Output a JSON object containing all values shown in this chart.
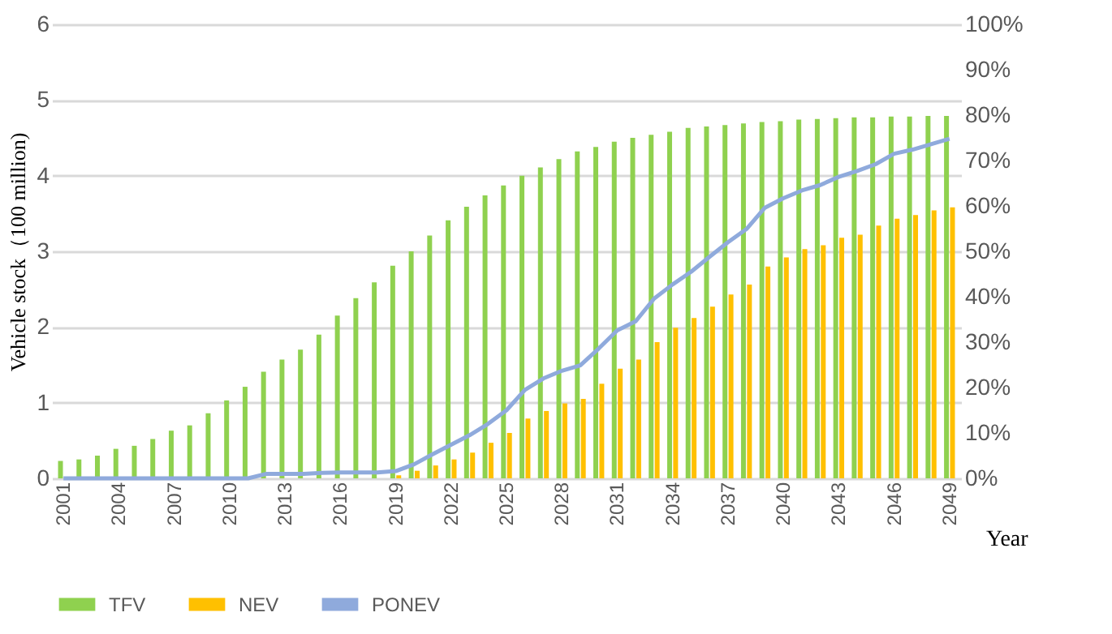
{
  "chart_data": {
    "type": "bar",
    "xlabel": "Year",
    "ylabel": "Vehicle stock（100 million)",
    "categories": [
      "2001",
      null,
      null,
      "2004",
      null,
      null,
      "2007",
      null,
      null,
      "2010",
      null,
      null,
      "2013",
      null,
      null,
      "2016",
      null,
      null,
      "2019",
      null,
      null,
      "2022",
      null,
      null,
      "2025",
      null,
      null,
      "2028",
      null,
      null,
      "2031",
      null,
      null,
      "2034",
      null,
      null,
      "2037",
      null,
      null,
      "2040",
      null,
      null,
      "2043",
      null,
      null,
      "2046",
      null,
      null,
      "2049"
    ],
    "series": [
      {
        "name": "TFV",
        "color": "#8fd14f",
        "values": [
          0.23,
          0.25,
          0.3,
          0.39,
          0.43,
          0.52,
          0.63,
          0.7,
          0.86,
          1.03,
          1.21,
          1.41,
          1.57,
          1.7,
          1.9,
          2.15,
          2.38,
          2.59,
          2.81,
          3.0,
          3.21,
          3.41,
          3.59,
          3.74,
          3.87,
          4.0,
          4.11,
          4.22,
          4.32,
          4.38,
          4.45,
          4.5,
          4.54,
          4.58,
          4.63,
          4.65,
          4.67,
          4.69,
          4.71,
          4.72,
          4.74,
          4.75,
          4.76,
          4.77,
          4.77,
          4.78,
          4.78,
          4.79,
          4.79
        ]
      },
      {
        "name": "NEV",
        "color": "#ffc000",
        "values": [
          null,
          null,
          null,
          null,
          null,
          null,
          null,
          null,
          null,
          null,
          null,
          null,
          null,
          null,
          null,
          null,
          null,
          null,
          0.04,
          0.1,
          0.17,
          0.25,
          0.34,
          0.47,
          0.6,
          0.79,
          0.89,
          0.99,
          1.05,
          1.25,
          1.45,
          1.57,
          1.8,
          1.99,
          2.12,
          2.27,
          2.43,
          2.56,
          2.8,
          2.92,
          3.03,
          3.08,
          3.18,
          3.22,
          3.34,
          3.43,
          3.48,
          3.54,
          3.58
        ]
      },
      {
        "name": "PONEV",
        "type": "line",
        "axis": "y2",
        "color": "#8faadc",
        "values": [
          0,
          0,
          0,
          0,
          0,
          0,
          0,
          0,
          0,
          0,
          0,
          1,
          1,
          1,
          1.2,
          1.3,
          1.3,
          1.3,
          1.6,
          3.1,
          5.3,
          7.4,
          9.5,
          12,
          15,
          19.5,
          22,
          23.7,
          24.9,
          28.6,
          32.6,
          34.6,
          39.6,
          42.7,
          45.5,
          48.8,
          52,
          54.9,
          59.6,
          61.7,
          63.4,
          64.6,
          66.4,
          67.7,
          69.2,
          71.5,
          72.4,
          73.6,
          74.8
        ]
      }
    ],
    "ylim": [
      0,
      6
    ],
    "yticks": [
      0,
      1,
      2,
      3,
      4,
      5,
      6
    ],
    "y2lim": [
      0,
      100
    ],
    "y2ticks": [
      {
        "value": 0,
        "label": "0%"
      },
      {
        "value": 10,
        "label": "10%"
      },
      {
        "value": 20,
        "label": "20%"
      },
      {
        "value": 30,
        "label": "30%"
      },
      {
        "value": 40,
        "label": "40%"
      },
      {
        "value": 50,
        "label": "50%"
      },
      {
        "value": 60,
        "label": "60%"
      },
      {
        "value": 70,
        "label": "70%"
      },
      {
        "value": 80,
        "label": "80%"
      },
      {
        "value": 90,
        "label": "90%"
      },
      {
        "value": 100,
        "label": "100%"
      }
    ],
    "grid": "y",
    "legend": "bottom",
    "marker": "none",
    "line_style": "solid"
  }
}
